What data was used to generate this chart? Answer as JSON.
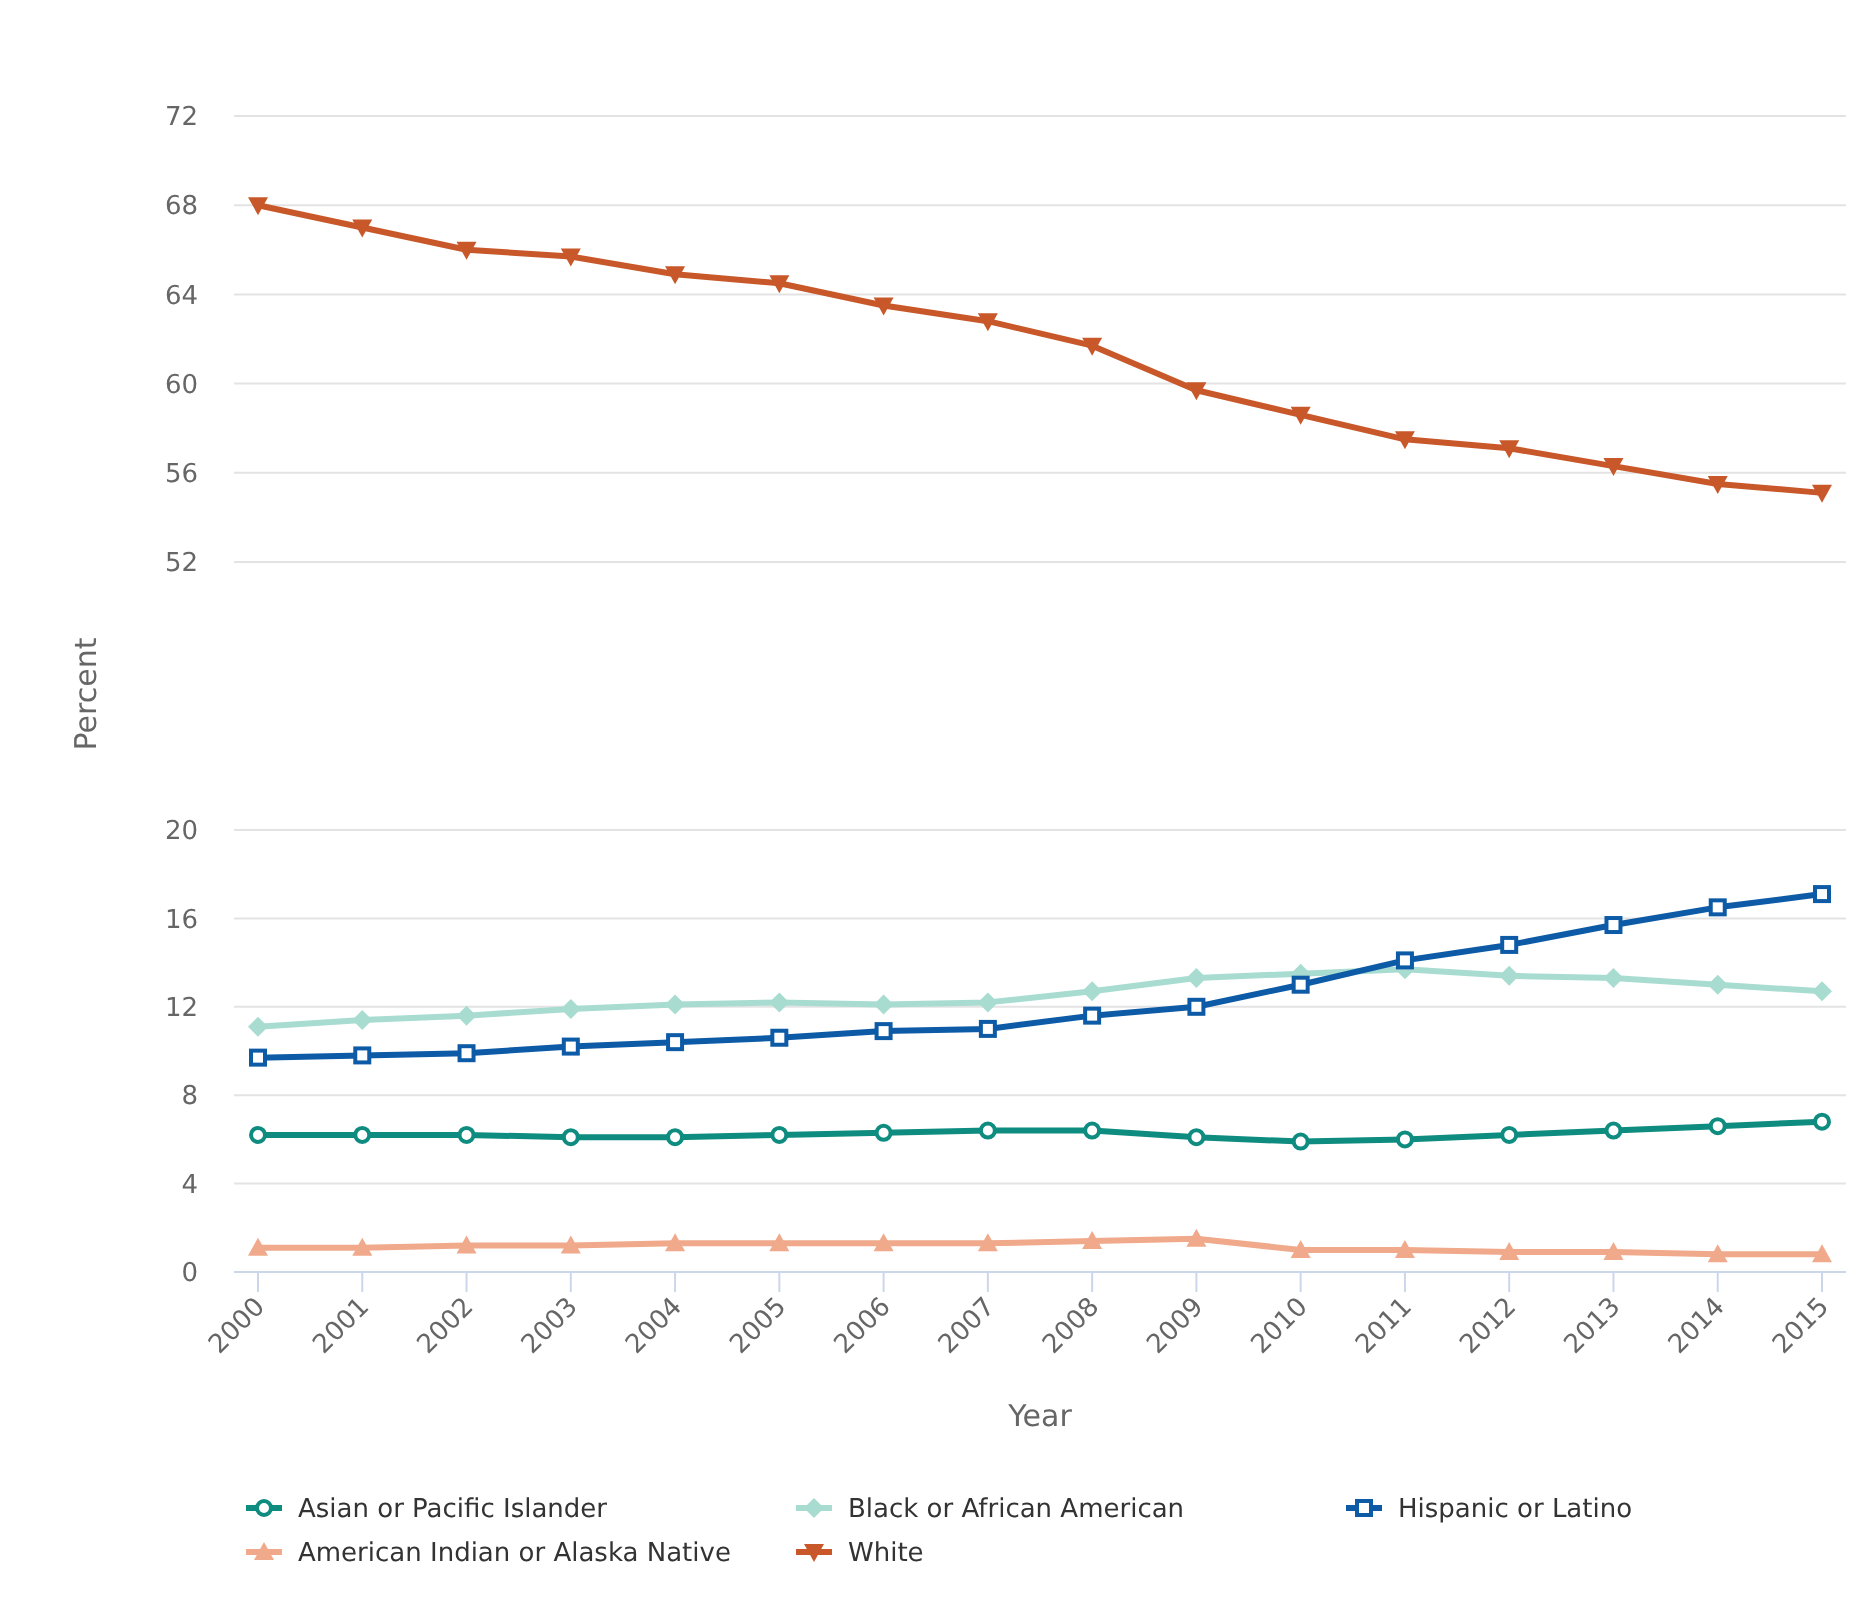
{
  "chart_data": [
    {
      "type": "line",
      "categories": [
        "2000",
        "2001",
        "2002",
        "2003",
        "2004",
        "2005",
        "2006",
        "2007",
        "2008",
        "2009",
        "2010",
        "2011",
        "2012",
        "2013",
        "2014",
        "2015"
      ],
      "ylim": [
        52,
        72
      ],
      "yticks": [
        52,
        56,
        60,
        64,
        68,
        72
      ],
      "grid": "y",
      "tick_labels": "y",
      "legend": "bottom",
      "series": [
        {
          "name": "White",
          "color": "#c8582a",
          "marker": "triangle",
          "values": [
            68.0,
            67.0,
            66.0,
            65.7,
            64.9,
            64.5,
            63.5,
            62.8,
            61.7,
            59.7,
            58.6,
            57.5,
            57.1,
            56.3,
            55.5,
            55.1
          ]
        }
      ]
    },
    {
      "type": "line",
      "categories": [
        "2000",
        "2001",
        "2002",
        "2003",
        "2004",
        "2005",
        "2006",
        "2007",
        "2008",
        "2009",
        "2010",
        "2011",
        "2012",
        "2013",
        "2014",
        "2015"
      ],
      "xlabel": "Year",
      "ylabel": "Percent",
      "ylim": [
        0,
        20
      ],
      "yticks": [
        0,
        4,
        8,
        12,
        16,
        20
      ],
      "grid": "y",
      "legend": "bottom",
      "series": [
        {
          "name": "Asian or Pacific Islander",
          "color": "#0f8c80",
          "marker": "circle",
          "values": [
            6.2,
            6.2,
            6.2,
            6.1,
            6.1,
            6.2,
            6.3,
            6.4,
            6.4,
            6.1,
            5.9,
            6.0,
            6.2,
            6.4,
            6.6,
            6.8
          ]
        },
        {
          "name": "Black or African American",
          "color": "#a8dcd1",
          "marker": "diamond",
          "values": [
            11.1,
            11.4,
            11.6,
            11.9,
            12.1,
            12.2,
            12.1,
            12.2,
            12.7,
            13.3,
            13.5,
            13.7,
            13.4,
            13.3,
            13.0,
            12.7
          ]
        },
        {
          "name": "Hispanic or Latino",
          "color": "#0d5ba6",
          "marker": "square",
          "values": [
            9.7,
            9.8,
            9.9,
            10.2,
            10.4,
            10.6,
            10.9,
            11.0,
            11.6,
            12.0,
            13.0,
            14.1,
            14.8,
            15.7,
            16.5,
            17.1
          ]
        },
        {
          "name": "American Indian or Alaska Native",
          "color": "#f0a98a",
          "marker": "triangle",
          "values": [
            1.1,
            1.1,
            1.2,
            1.2,
            1.3,
            1.3,
            1.3,
            1.3,
            1.4,
            1.5,
            1.0,
            1.0,
            0.9,
            0.9,
            0.8,
            0.8
          ]
        }
      ]
    }
  ]
}
